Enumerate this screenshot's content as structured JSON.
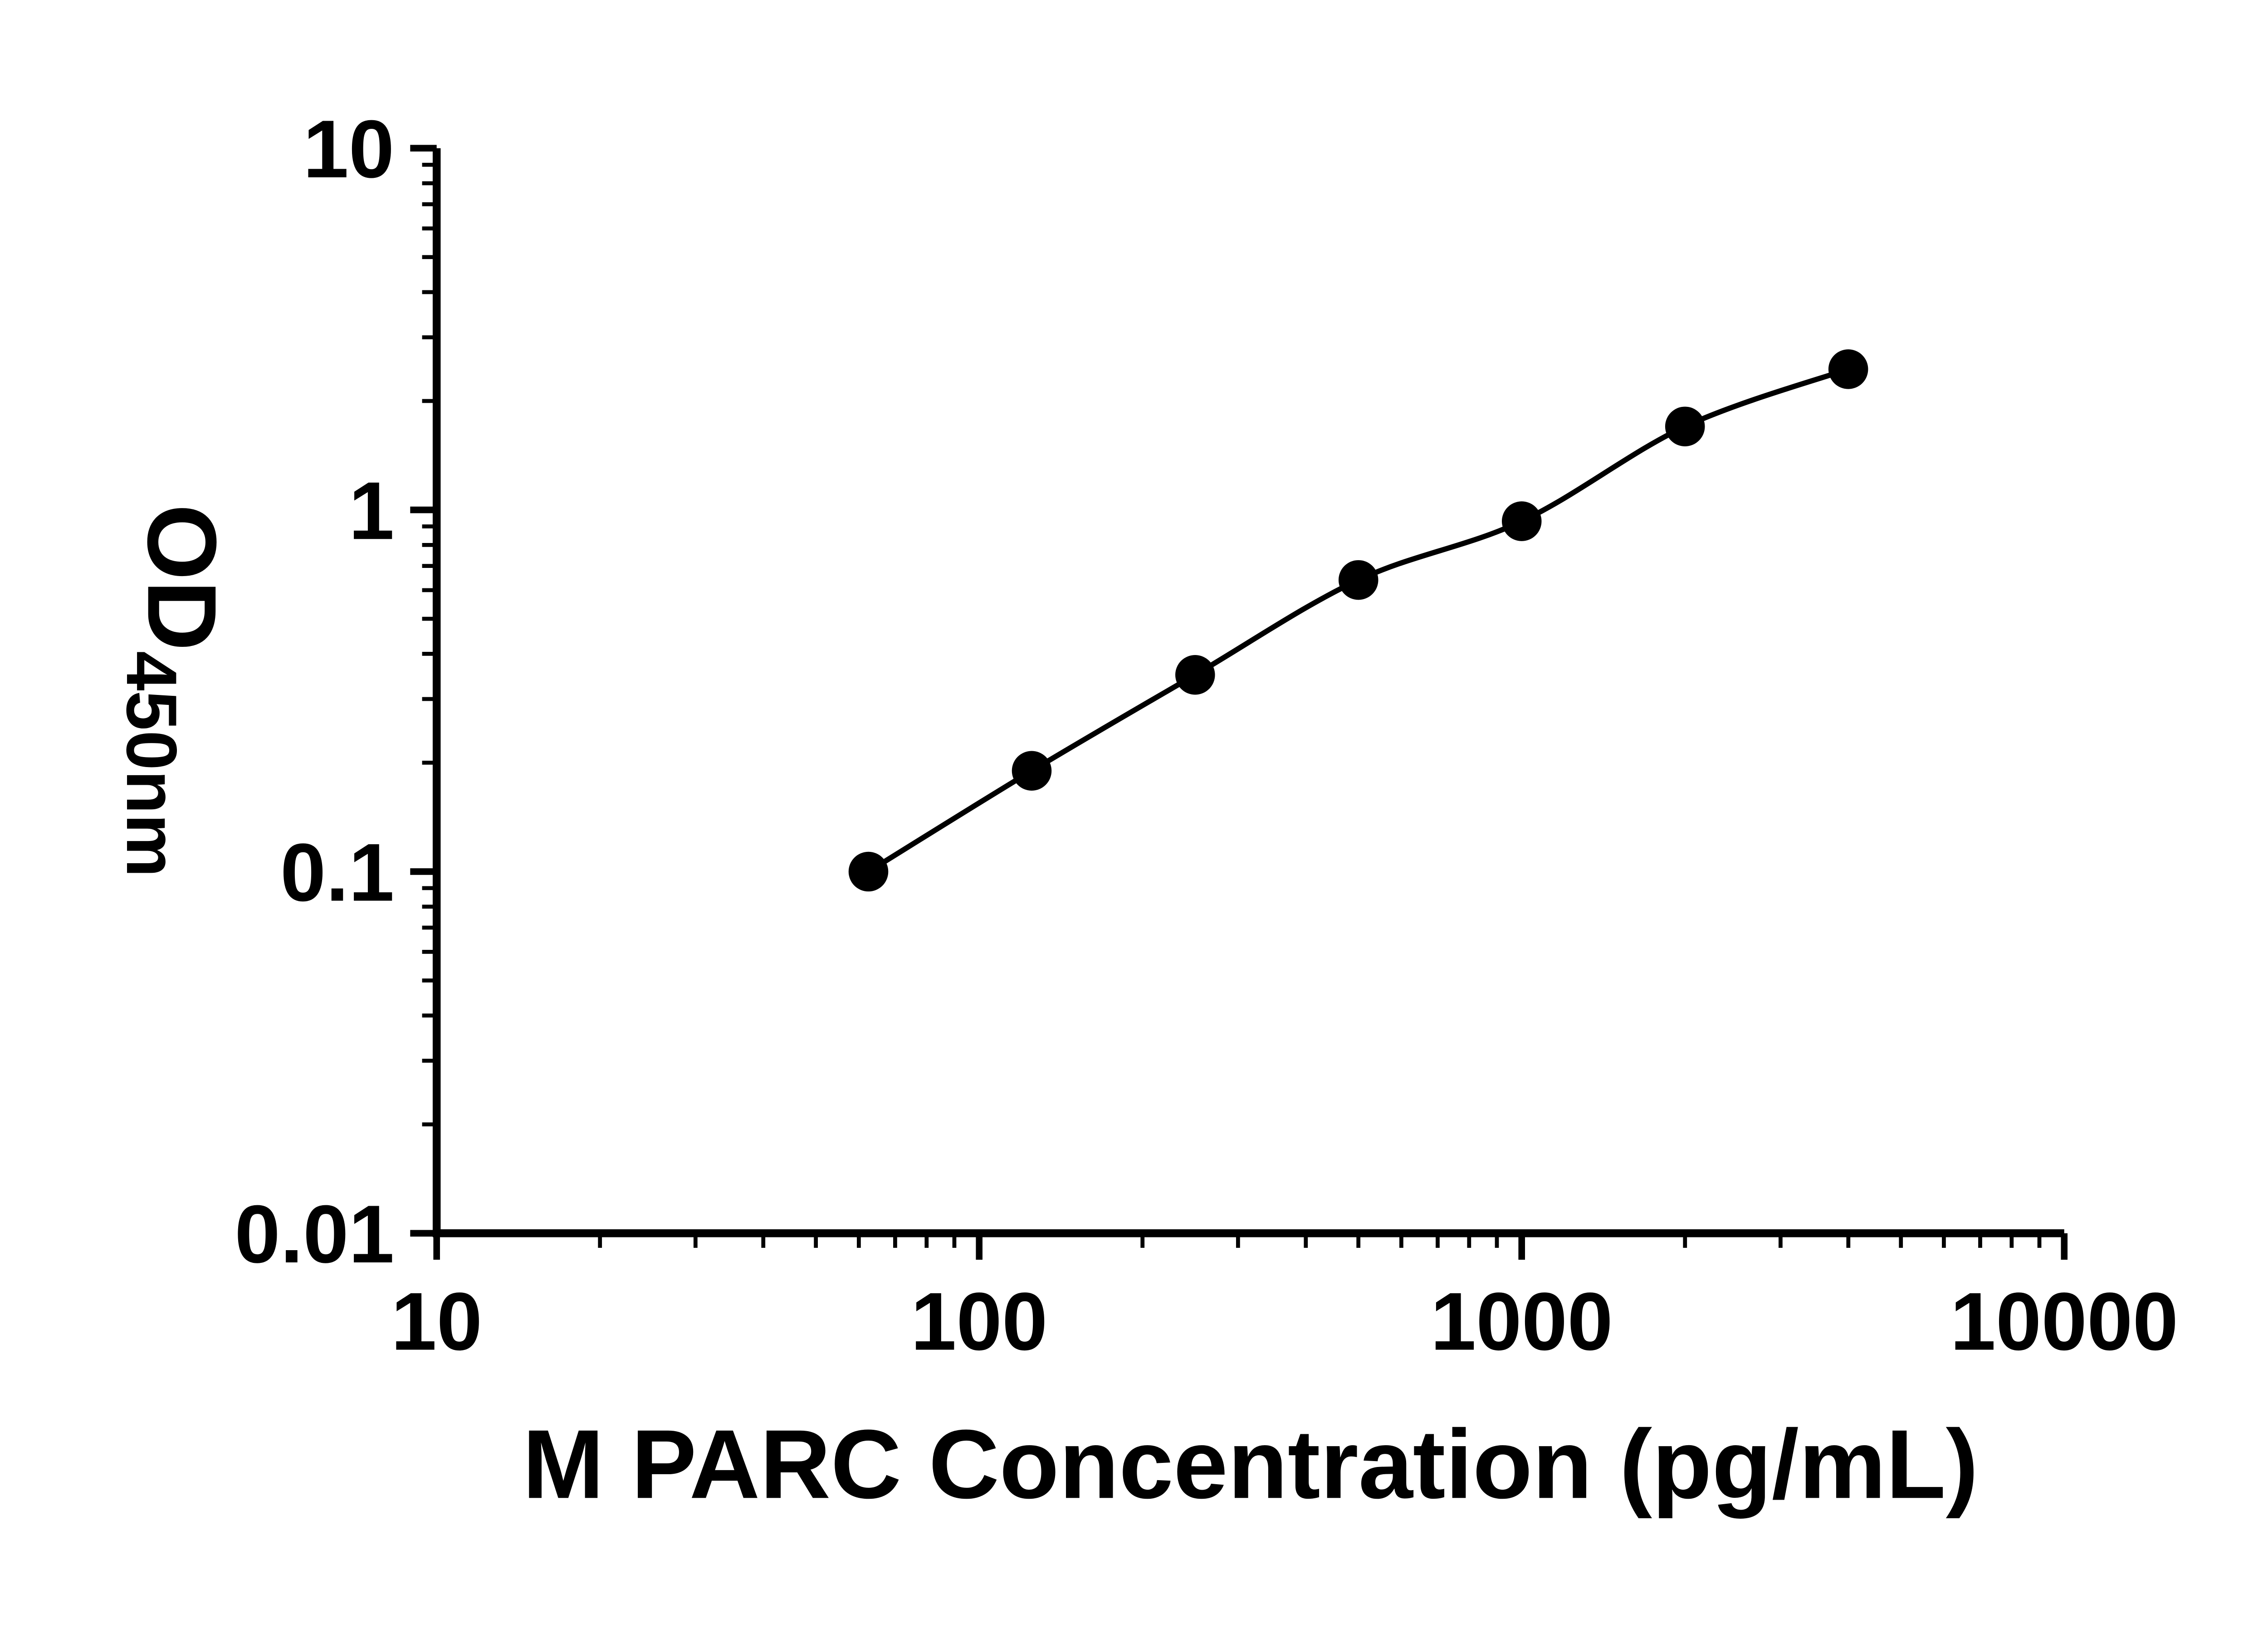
{
  "chart_data": {
    "type": "scatter",
    "title": "",
    "xlabel": "M PARC Concentration (pg/mL)",
    "ylabel": {
      "base": "OD",
      "subscript": "450nm"
    },
    "x_scale": "log",
    "y_scale": "log",
    "xlim": [
      10,
      10000
    ],
    "ylim": [
      0.01,
      10
    ],
    "x_ticks": [
      {
        "value": 10,
        "label": "10"
      },
      {
        "value": 100,
        "label": "100"
      },
      {
        "value": 1000,
        "label": "1000"
      },
      {
        "value": 10000,
        "label": "10000"
      }
    ],
    "y_ticks": [
      {
        "value": 0.01,
        "label": "0.01"
      },
      {
        "value": 0.1,
        "label": "0.1"
      },
      {
        "value": 1,
        "label": "1"
      },
      {
        "value": 10,
        "label": "10"
      }
    ],
    "minor_ticks": true,
    "grid": false,
    "legend": "none",
    "axis_color": "#000000",
    "background": "#ffffff",
    "series": [
      {
        "marker": "filled-circle",
        "marker_color": "#000000",
        "line_color": "#000000",
        "points": [
          {
            "x": 62.5,
            "y": 0.1
          },
          {
            "x": 125,
            "y": 0.19
          },
          {
            "x": 250,
            "y": 0.35
          },
          {
            "x": 500,
            "y": 0.64
          },
          {
            "x": 1000,
            "y": 0.93
          },
          {
            "x": 2000,
            "y": 1.7
          },
          {
            "x": 4000,
            "y": 2.45
          }
        ]
      }
    ]
  }
}
